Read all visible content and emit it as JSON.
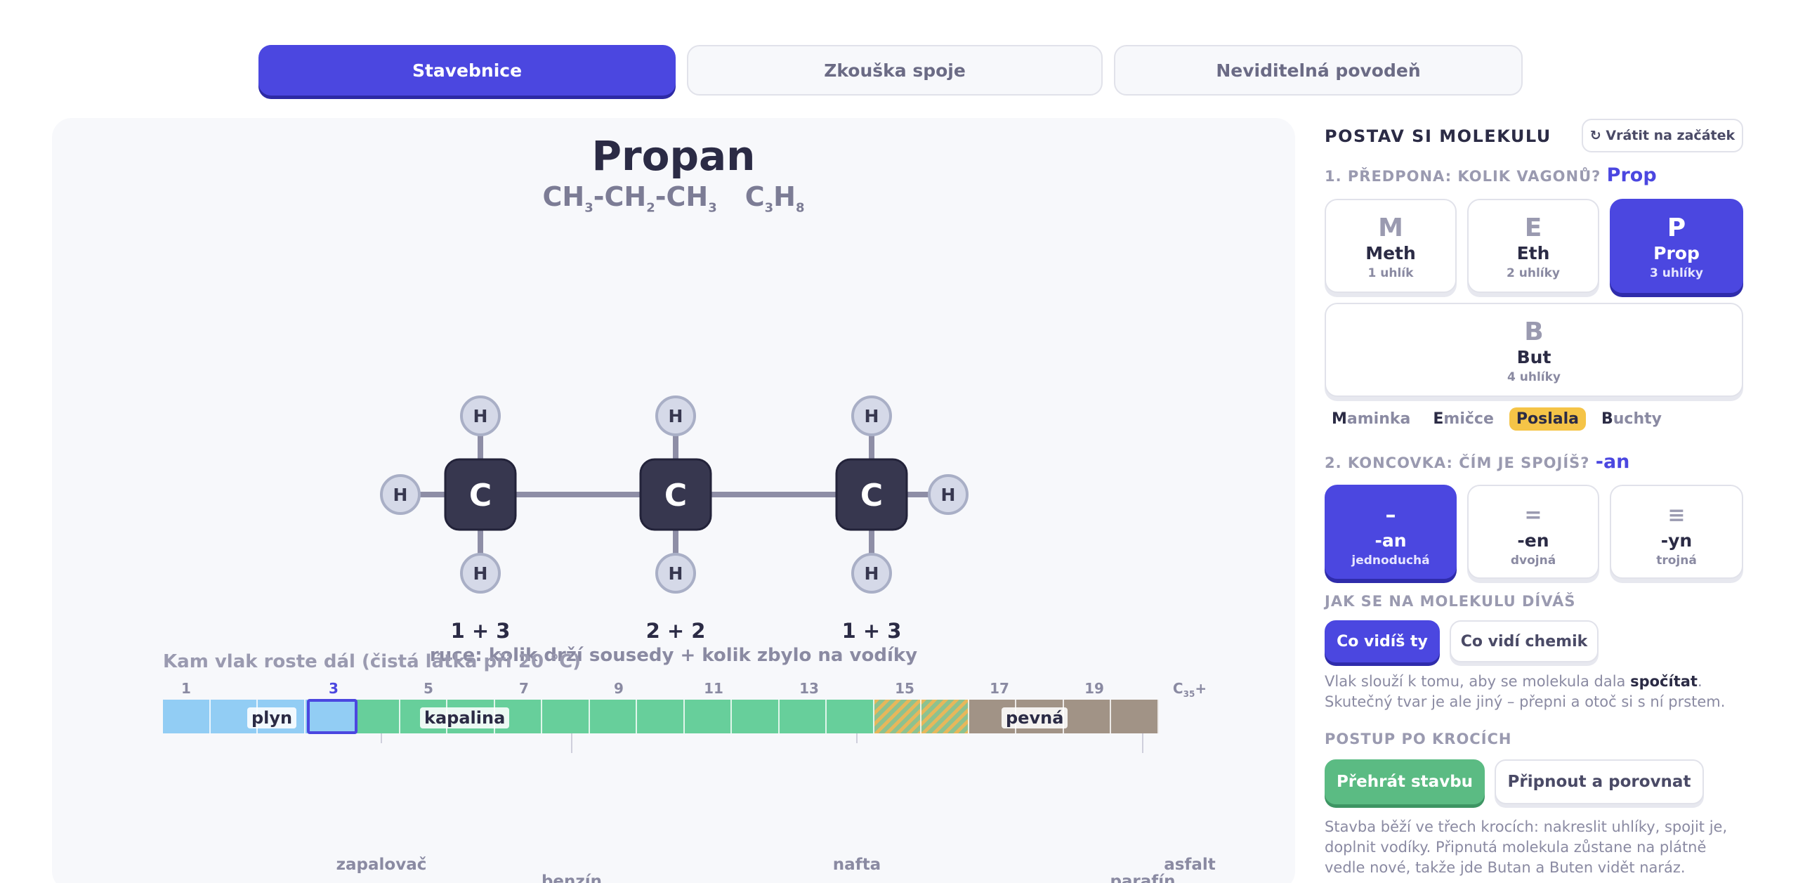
{
  "tabs": [
    {
      "label": "Stavebnice",
      "active": true
    },
    {
      "label": "Zkouška spoje",
      "active": false
    },
    {
      "label": "Neviditelná povodeň",
      "active": false
    }
  ],
  "molecule": {
    "name": "Propan",
    "formula_parts": [
      {
        "text": "CH",
        "sub": "3"
      },
      {
        "text": "-CH",
        "sub": "2"
      },
      {
        "text": "-CH",
        "sub": "3"
      }
    ],
    "formula_sum": [
      {
        "text": "C",
        "sub": "3"
      },
      {
        "text": "H",
        "sub": "8"
      }
    ],
    "carbon_label": "C",
    "hydrogen_label": "H",
    "hand_counts": [
      "1 + 3",
      "2 + 2",
      "1 + 3"
    ],
    "hands_caption": "ruce: kolik drží sousedy  +  kolik zbylo na vodíky"
  },
  "phase_strip": {
    "title": "Kam vlak roste dál (čistá látka při 20 °C)",
    "ticks": [
      "1",
      "3",
      "5",
      "7",
      "9",
      "11",
      "13",
      "15",
      "17",
      "19"
    ],
    "last_tick": {
      "text": "C",
      "sub": "35",
      "suffix": "+"
    },
    "selected_tick": "3",
    "phases": [
      "plyn",
      "kapalina",
      "pevná"
    ],
    "examples": {
      "zapalovac": "zapalovač",
      "benzin": "benzín",
      "nafta": "nafta",
      "parafin": "parafín",
      "asfalt": "asfalt"
    }
  },
  "panel": {
    "title": "POSTAV SI MOLEKULU",
    "reset_label": "↻ Vrátit na začátek",
    "prefix_heading": "1. PŘEDPONA: KOLIK VAGONŮ?",
    "prefix_value": "Prop",
    "prefixes": [
      {
        "letter": "M",
        "name": "Meth",
        "sub": "1 uhlík",
        "active": false
      },
      {
        "letter": "E",
        "name": "Eth",
        "sub": "2 uhlíky",
        "active": false
      },
      {
        "letter": "P",
        "name": "Prop",
        "sub": "3 uhlíky",
        "active": true
      },
      {
        "letter": "B",
        "name": "But",
        "sub": "4 uhlíky",
        "active": false
      }
    ],
    "mnemonic": [
      {
        "first": "M",
        "rest": "aminka",
        "highlight": false
      },
      {
        "first": "E",
        "rest": "mičce",
        "highlight": false
      },
      {
        "first": "P",
        "rest": "oslala",
        "highlight": true
      },
      {
        "first": "B",
        "rest": "uchty",
        "highlight": false
      }
    ],
    "suffix_heading": "2. KONCOVKA: ČÍM JE SPOJÍŠ?",
    "suffix_value": "-an",
    "suffixes": [
      {
        "symbol": "–",
        "name": "-an",
        "sub": "jednoduchá",
        "active": true
      },
      {
        "symbol": "=",
        "name": "-en",
        "sub": "dvojná",
        "active": false
      },
      {
        "symbol": "≡",
        "name": "-yn",
        "sub": "trojná",
        "active": false
      }
    ],
    "view_heading": "JAK SE NA MOLEKULU DÍVÁŠ",
    "view_you": "Co vidíš ty",
    "view_chemist": "Co vidí chemik",
    "view_text_1": "Vlak slouží k tomu, aby se molekula dala ",
    "view_text_bold": "spočítat",
    "view_text_2": ".",
    "view_text_3": "Skutečný tvar je ale jiný – přepni a otoč si s ní prstem.",
    "steps_heading": "POSTUP PO KROCÍCH",
    "play_label": "Přehrát stavbu",
    "pin_label": "Připnout a porovnat",
    "steps_text": "Stavba běží ve třech krocích: nakreslit uhlíky, spojit je, doplnit vodíky. Připnutá molekula zůstane na plátně vedle nové, takže jde Butan a Buten vidět naráz."
  },
  "colors": {
    "accent": "#4b47e0",
    "carbon": "#37374f",
    "hydrogen": "#d5d9e8",
    "bond": "#8e8ea6",
    "green": "#5bbb83",
    "highlight": "#f5c447",
    "gas": "#92cdf4",
    "liquid": "#67cf9b",
    "solid": "#a19386"
  }
}
